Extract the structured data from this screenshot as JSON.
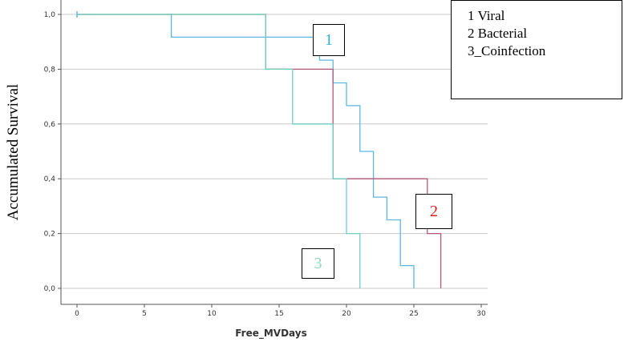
{
  "chart_data": {
    "type": "line",
    "title": "",
    "xlabel": "Free_MVDays",
    "ylabel": "Accumulated Survival",
    "xlim": [
      0,
      30
    ],
    "ylim": [
      0,
      1
    ],
    "x_ticks": [
      "0",
      "5",
      "10",
      "15",
      "20",
      "25",
      "30"
    ],
    "y_ticks": [
      "0,0",
      "0,2",
      "0,4",
      "0,6",
      "0,8",
      "1,0"
    ],
    "grid": "horizontal",
    "legend_position": "top-right",
    "legend": [
      "1 Viral",
      "2 Bacterial",
      "3_Coinfection"
    ],
    "series": [
      {
        "name": "1 Viral",
        "label": "1",
        "color": "#5BB8E0",
        "label_color": "#2CAFD6",
        "x": [
          0,
          7,
          7,
          18,
          18,
          19,
          19,
          20,
          20,
          21,
          21,
          22,
          22,
          23,
          23,
          24,
          24,
          25,
          25
        ],
        "y": [
          1.0,
          1.0,
          0.917,
          0.917,
          0.833,
          0.833,
          0.75,
          0.75,
          0.667,
          0.667,
          0.5,
          0.5,
          0.333,
          0.333,
          0.25,
          0.25,
          0.083,
          0.083,
          0.0
        ]
      },
      {
        "name": "2 Bacterial",
        "label": "2",
        "color": "#B5577A",
        "label_color": "#E01B1B",
        "x": [
          0,
          14,
          14,
          19,
          19,
          26,
          26,
          27,
          27
        ],
        "y": [
          1.0,
          1.0,
          0.8,
          0.8,
          0.4,
          0.4,
          0.2,
          0.2,
          0.0
        ]
      },
      {
        "name": "3_Coinfection",
        "label": "3",
        "color": "#6CCFC0",
        "label_color": "#8EDAB8",
        "x": [
          0,
          14,
          14,
          16,
          16,
          19,
          19,
          20,
          20,
          21,
          21
        ],
        "y": [
          1.0,
          1.0,
          0.8,
          0.8,
          0.6,
          0.6,
          0.4,
          0.4,
          0.2,
          0.2,
          0.0
        ]
      }
    ],
    "censored": [
      {
        "x": 0,
        "y": 1.0
      }
    ]
  }
}
